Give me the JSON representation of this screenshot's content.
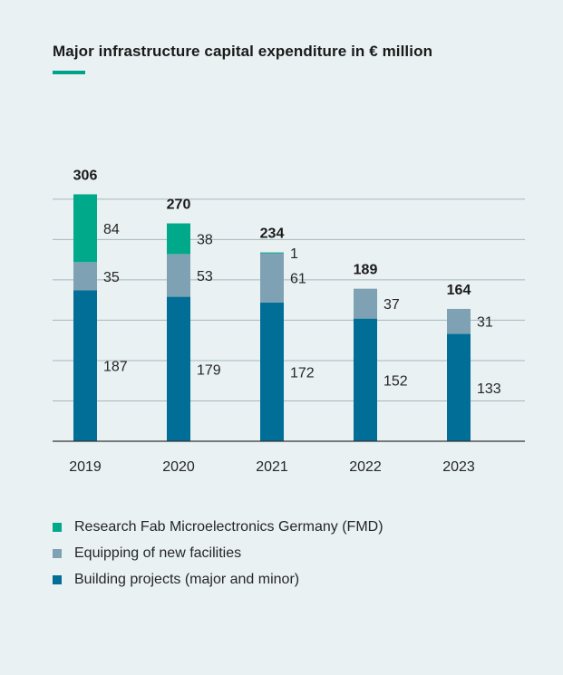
{
  "title": "Major infrastructure capital expenditure in € million",
  "colors": {
    "accent": "#00a389",
    "fmd": "#00a98a",
    "equipping": "#7ea2b3",
    "building": "#006e96",
    "grid": "#a9b7bd",
    "axis": "#333333"
  },
  "legend": {
    "fmd": "Research Fab Microelectronics Germany (FMD)",
    "equipping": "Equipping of new facilities",
    "building": "Building projects (major and minor)"
  },
  "chart_data": {
    "type": "bar",
    "stacked": true,
    "title": "Major infrastructure capital expenditure in € million",
    "xlabel": "",
    "ylabel": "",
    "ylim": [
      0,
      320
    ],
    "grid": true,
    "legend_position": "bottom",
    "categories": [
      "2019",
      "2020",
      "2021",
      "2022",
      "2023"
    ],
    "totals": [
      "306",
      "270",
      "234",
      "189",
      "164"
    ],
    "series": [
      {
        "key": "building",
        "name": "Building projects (major and minor)",
        "values": [
          187,
          179,
          172,
          152,
          133
        ]
      },
      {
        "key": "equipping",
        "name": "Equipping of new facilities",
        "values": [
          35,
          53,
          61,
          37,
          31
        ]
      },
      {
        "key": "fmd",
        "name": "Research Fab Microelectronics Germany (FMD)",
        "values": [
          84,
          38,
          1,
          null,
          null
        ]
      }
    ]
  }
}
